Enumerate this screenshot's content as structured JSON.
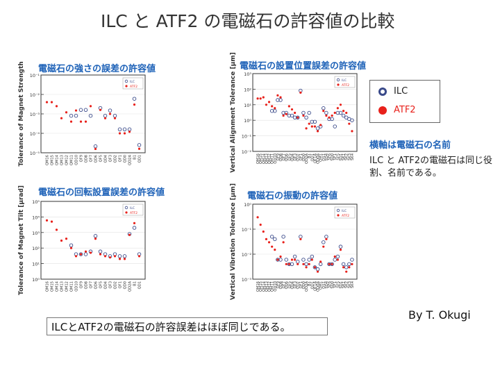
{
  "slide": {
    "title": "ILC と ATF2 の電磁石の許容値の比較",
    "legend": {
      "ilc_label": "ILC",
      "atf2_label": "ATF2"
    },
    "note_axis": "横軸は電磁石の名前",
    "note_same": "ILC と ATF2の電磁石は同じ役割、名前である。",
    "byline": "By T. Okugi",
    "conclusion": "ILCとATF2の電磁石の許容誤差はほぼ同じである。"
  },
  "colors": {
    "ilc": "#3a4a8a",
    "atf2": "#e8211b",
    "panel_title": "#1e62b8"
  },
  "chart_data": [
    {
      "type": "scatter",
      "title": "電磁石の強さの誤差の許容値",
      "ylabel": "Tolerance of Magnet Strength",
      "yscale": "log",
      "ylim": [
        1e-05,
        0.1
      ],
      "yticks": [
        "10⁻¹",
        "10⁻²",
        "10⁻³",
        "10⁻⁴",
        "10⁻⁵"
      ],
      "legend_labels": [
        "ILC",
        "ATF2"
      ],
      "categories": [
        "QM16",
        "QM15",
        "QM14",
        "QM13",
        "QM12",
        "QM11",
        "QD10",
        "QF9",
        "QD8",
        "QF7",
        "QD6",
        "QF5",
        "QD4",
        "QF3",
        "QD2",
        "QF1",
        "QD0",
        "QD2A",
        "B1",
        "QD1"
      ],
      "series": [
        {
          "name": "ILC",
          "values": [
            null,
            null,
            null,
            null,
            null,
            0.0008,
            0.0008,
            0.0016,
            0.0016,
            0.0008,
            2.16e-05,
            0.002,
            0.0008,
            0.0015,
            0.0008,
            0.00016,
            0.00016,
            0.00016,
            0.006,
            2.5e-05
          ]
        },
        {
          "name": "ATF2",
          "values": [
            0.004,
            0.004,
            0.0025,
            0.0006,
            0.0012,
            0.0004,
            0.0015,
            0.0004,
            0.0004,
            0.0025,
            1.58e-05,
            0.0016,
            0.0006,
            0.001,
            0.0006,
            0.0001,
            0.0001,
            0.00012,
            0.003,
            1.6e-05
          ]
        }
      ]
    },
    {
      "type": "scatter",
      "title": "電磁石の設置位置誤差の許容値",
      "ylabel": "Vertical Alignment Tolerance [μm]",
      "yscale": "log",
      "ylim": [
        0.01,
        1000
      ],
      "yticks": [
        "10³",
        "10²",
        "10¹",
        "10⁰",
        "10⁻¹",
        "10⁻²"
      ],
      "legend_labels": [
        "ILC",
        "ATF2"
      ],
      "categories": [
        "QM16",
        "QM15",
        "QM14",
        "QM13",
        "QM12",
        "QM11",
        "QD10",
        "QF9",
        "QD8",
        "QF7",
        "QD6",
        "QF5",
        "QD4",
        "QF3",
        "QD2",
        "QF1",
        "QD0",
        "QD2A",
        "B1",
        "QD1",
        "QF1A",
        "QD0A",
        "QM1",
        "QS1",
        "SD4",
        "SF6",
        "SD0",
        "SF1",
        "SF5",
        "SD1",
        "SK1",
        "SK2",
        "SK3",
        "SK4"
      ],
      "series": [
        {
          "name": "ILC",
          "values": [
            null,
            null,
            null,
            null,
            null,
            4,
            4,
            20,
            20,
            3,
            3,
            2,
            2,
            1.5,
            1.5,
            80,
            3,
            1.5,
            3,
            0.8,
            0.8,
            0.3,
            0.4,
            6,
            3,
            1.2,
            1.2,
            0.4,
            3,
            3,
            2,
            1.5,
            1.2,
            1
          ]
        },
        {
          "name": "ATF2",
          "values": [
            25,
            25,
            30,
            10,
            15,
            8,
            6,
            40,
            30,
            2,
            2.5,
            8,
            5,
            3,
            1.5,
            60,
            2,
            0.3,
            0.6,
            0.4,
            0.4,
            0.2,
            0.5,
            4,
            2,
            1.5,
            2,
            3,
            6,
            10,
            4,
            3,
            0.6,
            0.2
          ]
        }
      ]
    },
    {
      "type": "scatter",
      "title": "電磁石の回転設置誤差の許容値",
      "ylabel": "Tolerance of Magnet Tilt [μrad]",
      "yscale": "log",
      "ylim": [
        1,
        100000
      ],
      "yticks": [
        "10⁵",
        "10⁴",
        "10³",
        "10²",
        "10¹",
        "10⁰"
      ],
      "legend_labels": [
        "ILC",
        "ATF2"
      ],
      "categories": [
        "QM16",
        "QM15",
        "QM14",
        "QM13",
        "QM12",
        "QM11",
        "QD10",
        "QF9",
        "QD8",
        "QF7",
        "QD6",
        "QF5",
        "QD4",
        "QF3",
        "QD2",
        "QF1",
        "QD0",
        "QD2A",
        "B1",
        "QD1"
      ],
      "series": [
        {
          "name": "ILC",
          "values": [
            null,
            null,
            null,
            null,
            null,
            150,
            40,
            40,
            40,
            60,
            600,
            60,
            40,
            30,
            40,
            30,
            30,
            800,
            2000,
            40
          ]
        },
        {
          "name": "ATF2",
          "values": [
            6000,
            5000,
            1500,
            300,
            400,
            100,
            30,
            40,
            60,
            50,
            400,
            40,
            30,
            25,
            30,
            20,
            20,
            700,
            4000,
            30
          ]
        }
      ]
    },
    {
      "type": "scatter",
      "title": "電磁石の振動の許容値",
      "ylabel": "Vertical Vibration Tolerance [μm]",
      "yscale": "log",
      "ylim": [
        0.001,
        1
      ],
      "yticks": [
        "10⁰",
        "10⁻¹",
        "10⁻²",
        "10⁻³"
      ],
      "legend_labels": [
        "ILC",
        "ATF2"
      ],
      "categories": [
        "QM16",
        "QM15",
        "QM14",
        "QM13",
        "QM12",
        "QM11",
        "QD10",
        "QF9",
        "QD8",
        "QF7",
        "QD6",
        "QF5",
        "QD4",
        "QF3",
        "QD2",
        "QF1",
        "QD0",
        "QD2A",
        "B1",
        "QD1",
        "QF1A",
        "QD0A",
        "QM1",
        "QS1",
        "SD4",
        "SF6",
        "SD0",
        "SF1",
        "SF5",
        "SD1",
        "SK1",
        "SK2",
        "SK3",
        "SK4"
      ],
      "series": [
        {
          "name": "ILC",
          "values": [
            null,
            null,
            null,
            null,
            null,
            0.05,
            0.04,
            0.006,
            0.006,
            0.05,
            0.006,
            0.004,
            0.004,
            0.008,
            0.005,
            0.05,
            0.006,
            0.004,
            0.006,
            0.008,
            0.003,
            0.0025,
            0.004,
            0.03,
            0.05,
            0.004,
            0.004,
            0.006,
            0.008,
            0.02,
            0.004,
            0.003,
            0.004,
            0.006
          ]
        },
        {
          "name": "ATF2",
          "values": [
            0.3,
            0.15,
            0.08,
            0.04,
            0.03,
            0.02,
            0.015,
            0.006,
            0.008,
            0.03,
            0.004,
            0.004,
            0.006,
            0.006,
            0.004,
            0.04,
            0.004,
            0.003,
            0.004,
            0.006,
            0.003,
            0.002,
            0.005,
            0.02,
            0.04,
            0.004,
            0.004,
            0.008,
            0.006,
            0.015,
            0.003,
            0.002,
            0.003,
            0.004
          ]
        }
      ]
    }
  ]
}
